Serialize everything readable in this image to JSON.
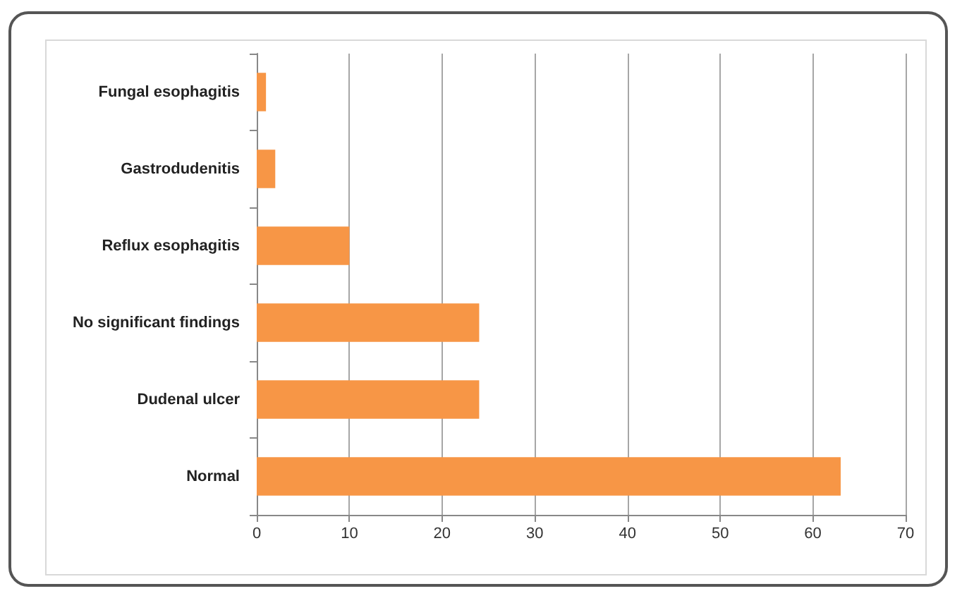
{
  "chart_data": {
    "type": "bar",
    "orientation": "horizontal",
    "categories": [
      "Fungal esophagitis",
      "Gastrodudenitis",
      "Reflux esophagitis",
      "No significant findings",
      "Dudenal ulcer",
      "Normal"
    ],
    "values": [
      1,
      2,
      10,
      24,
      24,
      63
    ],
    "color": "#f79646",
    "xlim": [
      0,
      70
    ],
    "xticks": [
      0,
      10,
      20,
      30,
      40,
      50,
      60,
      70
    ],
    "grid": "x"
  }
}
